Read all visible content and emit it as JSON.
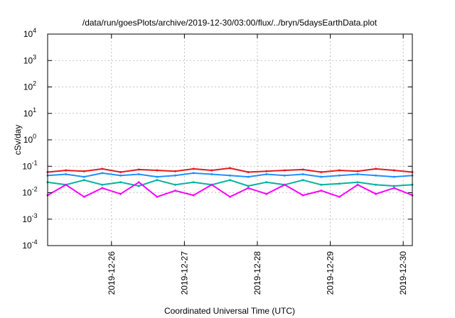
{
  "chart_data": {
    "type": "line",
    "title": "/data/run/goesPlots/archive/2019-12-30/03:00/flux/../bryn/5daysEarthData.plot",
    "xlabel": "Coordinated Universal Time (UTC)",
    "ylabel": "cSv/day",
    "yscale": "log",
    "ylim": [
      0.0001,
      10000
    ],
    "xlim": [
      "2019-12-25T03:00",
      "2019-12-30T03:00"
    ],
    "grid": true,
    "ytick_labels": [
      {
        "base": "10",
        "exp": "-4"
      },
      {
        "base": "10",
        "exp": "-3"
      },
      {
        "base": "10",
        "exp": "-2"
      },
      {
        "base": "10",
        "exp": "-1"
      },
      {
        "base": "10",
        "exp": "0"
      },
      {
        "base": "10",
        "exp": "1"
      },
      {
        "base": "10",
        "exp": "2"
      },
      {
        "base": "10",
        "exp": "3"
      },
      {
        "base": "10",
        "exp": "4"
      }
    ],
    "xtick_labels": [
      "2019-12-26",
      "2019-12-27",
      "2019-12-28",
      "2019-12-29",
      "2019-12-30"
    ],
    "x": [
      "2019-12-25T03:00",
      "2019-12-25T09:00",
      "2019-12-25T15:00",
      "2019-12-25T21:00",
      "2019-12-26T03:00",
      "2019-12-26T09:00",
      "2019-12-26T15:00",
      "2019-12-26T21:00",
      "2019-12-27T03:00",
      "2019-12-27T09:00",
      "2019-12-27T15:00",
      "2019-12-27T21:00",
      "2019-12-28T03:00",
      "2019-12-28T09:00",
      "2019-12-28T15:00",
      "2019-12-28T21:00",
      "2019-12-29T03:00",
      "2019-12-29T09:00",
      "2019-12-29T15:00",
      "2019-12-29T21:00",
      "2019-12-30T03:00"
    ],
    "series": [
      {
        "color": "#e41a1c",
        "values": [
          0.06,
          0.07,
          0.065,
          0.08,
          0.06,
          0.075,
          0.07,
          0.065,
          0.08,
          0.07,
          0.085,
          0.06,
          0.065,
          0.07,
          0.075,
          0.06,
          0.07,
          0.065,
          0.08,
          0.07,
          0.06
        ]
      },
      {
        "color": "#1e90ff",
        "values": [
          0.045,
          0.05,
          0.04,
          0.055,
          0.045,
          0.05,
          0.04,
          0.045,
          0.055,
          0.05,
          0.045,
          0.04,
          0.05,
          0.045,
          0.05,
          0.04,
          0.045,
          0.05,
          0.045,
          0.04,
          0.045
        ]
      },
      {
        "color": "#00b3a1",
        "values": [
          0.025,
          0.02,
          0.03,
          0.02,
          0.025,
          0.018,
          0.03,
          0.02,
          0.025,
          0.02,
          0.03,
          0.018,
          0.025,
          0.02,
          0.03,
          0.02,
          0.022,
          0.025,
          0.02,
          0.018,
          0.02
        ]
      },
      {
        "color": "#ff00ff",
        "values": [
          0.008,
          0.02,
          0.007,
          0.015,
          0.009,
          0.025,
          0.007,
          0.012,
          0.008,
          0.02,
          0.007,
          0.015,
          0.009,
          0.02,
          0.008,
          0.012,
          0.007,
          0.02,
          0.009,
          0.015,
          0.008
        ]
      }
    ]
  }
}
